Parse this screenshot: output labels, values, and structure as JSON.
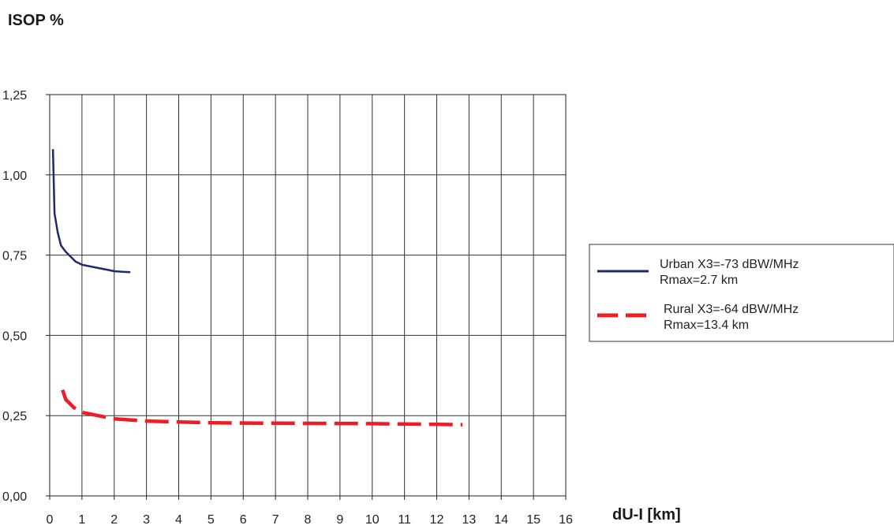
{
  "chart_data": {
    "type": "line",
    "ylabel": "ISOP %",
    "xlabel": "dU-I [km]",
    "xlim": [
      0,
      16
    ],
    "ylim": [
      0,
      1.25
    ],
    "x_ticks": [
      "0",
      "1",
      "2",
      "3",
      "4",
      "5",
      "6",
      "7",
      "8",
      "9",
      "10",
      "11",
      "12",
      "13",
      "14",
      "15",
      "16"
    ],
    "y_ticks": [
      {
        "value": 0.0,
        "label": "0,00"
      },
      {
        "value": 0.25,
        "label": "0,25"
      },
      {
        "value": 0.5,
        "label": "0,50"
      },
      {
        "value": 0.75,
        "label": "0,75"
      },
      {
        "value": 1.0,
        "label": "1,00"
      },
      {
        "value": 1.25,
        "label": "1,25"
      }
    ],
    "grid": true,
    "legend_position": "right",
    "series": [
      {
        "name": "Urban X3=-73 dBW/MHz",
        "subtitle": "Rmax=2.7 km",
        "color": "#1f2a6b",
        "style": "solid",
        "x": [
          0.1,
          0.15,
          0.25,
          0.35,
          0.5,
          0.65,
          0.8,
          1.0,
          1.25,
          1.5,
          1.75,
          2.0,
          2.25,
          2.5
        ],
        "y": [
          1.08,
          0.88,
          0.82,
          0.78,
          0.76,
          0.745,
          0.73,
          0.72,
          0.715,
          0.71,
          0.705,
          0.7,
          0.698,
          0.697
        ]
      },
      {
        "name": "Rural X3=-64 dBW/MHz",
        "subtitle": "Rmax=13.4 km",
        "color": "#ee1c25",
        "style": "dashed",
        "x": [
          0.4,
          0.5,
          0.75,
          1.0,
          1.5,
          2.0,
          3.0,
          4.0,
          5.0,
          6.0,
          8.0,
          10.0,
          12.0,
          12.8
        ],
        "y": [
          0.33,
          0.3,
          0.275,
          0.26,
          0.25,
          0.24,
          0.233,
          0.23,
          0.228,
          0.227,
          0.226,
          0.225,
          0.223,
          0.222
        ]
      }
    ]
  }
}
